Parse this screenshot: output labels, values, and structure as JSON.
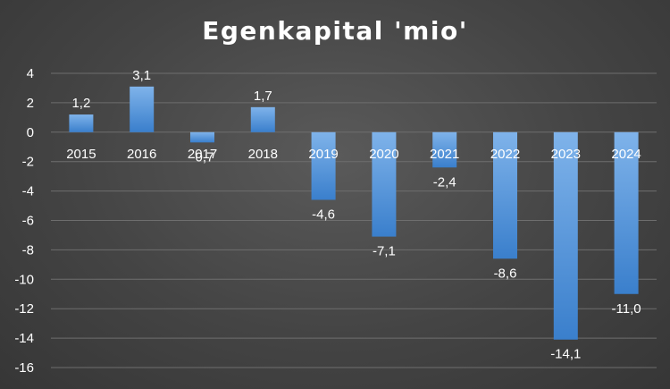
{
  "chart_data": {
    "type": "bar",
    "title": "Egenkapital 'mio'",
    "xlabel": "",
    "ylabel": "",
    "categories": [
      "2015",
      "2016",
      "2017",
      "2018",
      "2019",
      "2020",
      "2021",
      "2022",
      "2023",
      "2024"
    ],
    "values": [
      1.2,
      3.1,
      -0.7,
      1.7,
      -4.6,
      -7.1,
      -2.4,
      -8.6,
      -14.1,
      -11.0
    ],
    "data_labels": [
      "1,2",
      "3,1",
      "-0,7",
      "1,7",
      "-4,6",
      "-7,1",
      "-2,4",
      "-8,6",
      "-14,1",
      "-11,0"
    ],
    "ylim": [
      -16,
      4
    ],
    "yticks": [
      4,
      2,
      0,
      -2,
      -4,
      -6,
      -8,
      -10,
      -12,
      -14,
      -16
    ],
    "grid": true,
    "legend": "none"
  },
  "colors": {
    "bar_top": "#7fb3ea",
    "bar_bottom": "#3a7fcc",
    "text": "#ffffff",
    "grid": "#6e6e6e"
  }
}
